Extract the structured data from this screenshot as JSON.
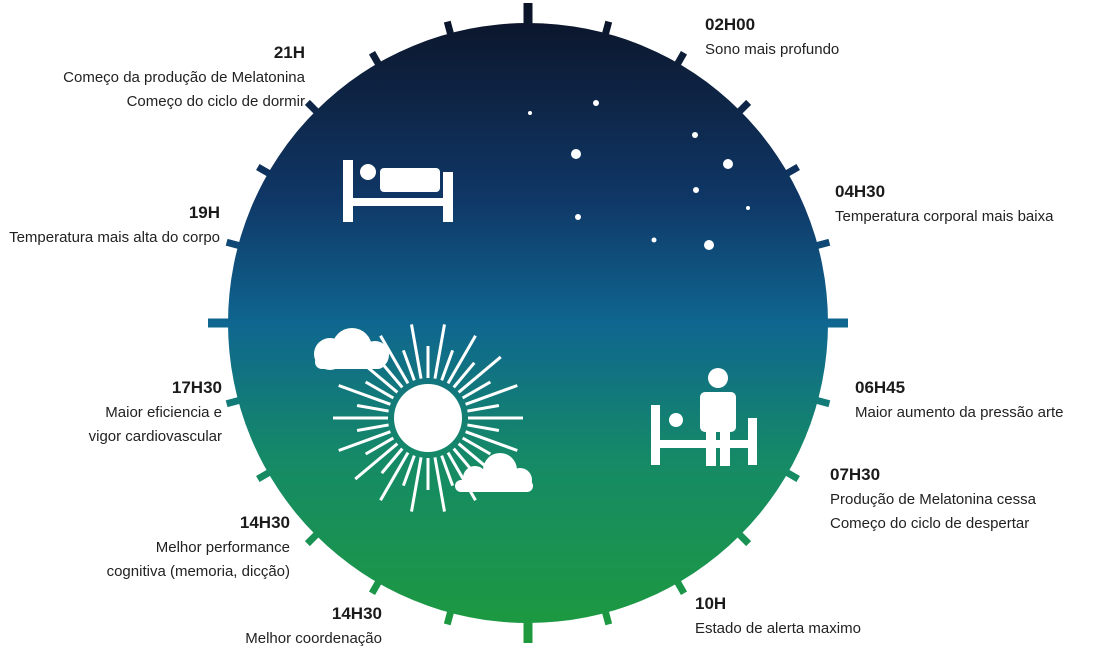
{
  "labels": [
    {
      "time": "02H00",
      "lines": [
        "Sono mais profundo"
      ]
    },
    {
      "time": "21H",
      "lines": [
        "Começo da produção de Melatonina",
        "Começo do ciclo de dormir"
      ]
    },
    {
      "time": "04H30",
      "lines": [
        "Temperatura corporal mais baixa"
      ]
    },
    {
      "time": "19H",
      "lines": [
        "Temperatura mais alta do corpo"
      ]
    },
    {
      "time": "06H45",
      "lines": [
        "Maior aumento da pressão arte"
      ]
    },
    {
      "time": "17H30",
      "lines": [
        "Maior eficiencia e",
        "vigor cardiovascular"
      ]
    },
    {
      "time": "07H30",
      "lines": [
        "Produção de Melatonina cessa",
        "Começo do ciclo de despertar"
      ]
    },
    {
      "time": "14H30",
      "lines": [
        "Melhor performance",
        "cognitiva (memoria, dicção)"
      ]
    },
    {
      "time": "10H",
      "lines": [
        "Estado de alerta maximo"
      ]
    },
    {
      "time": "14H30",
      "lines": [
        "Melhor coordenação"
      ]
    }
  ]
}
